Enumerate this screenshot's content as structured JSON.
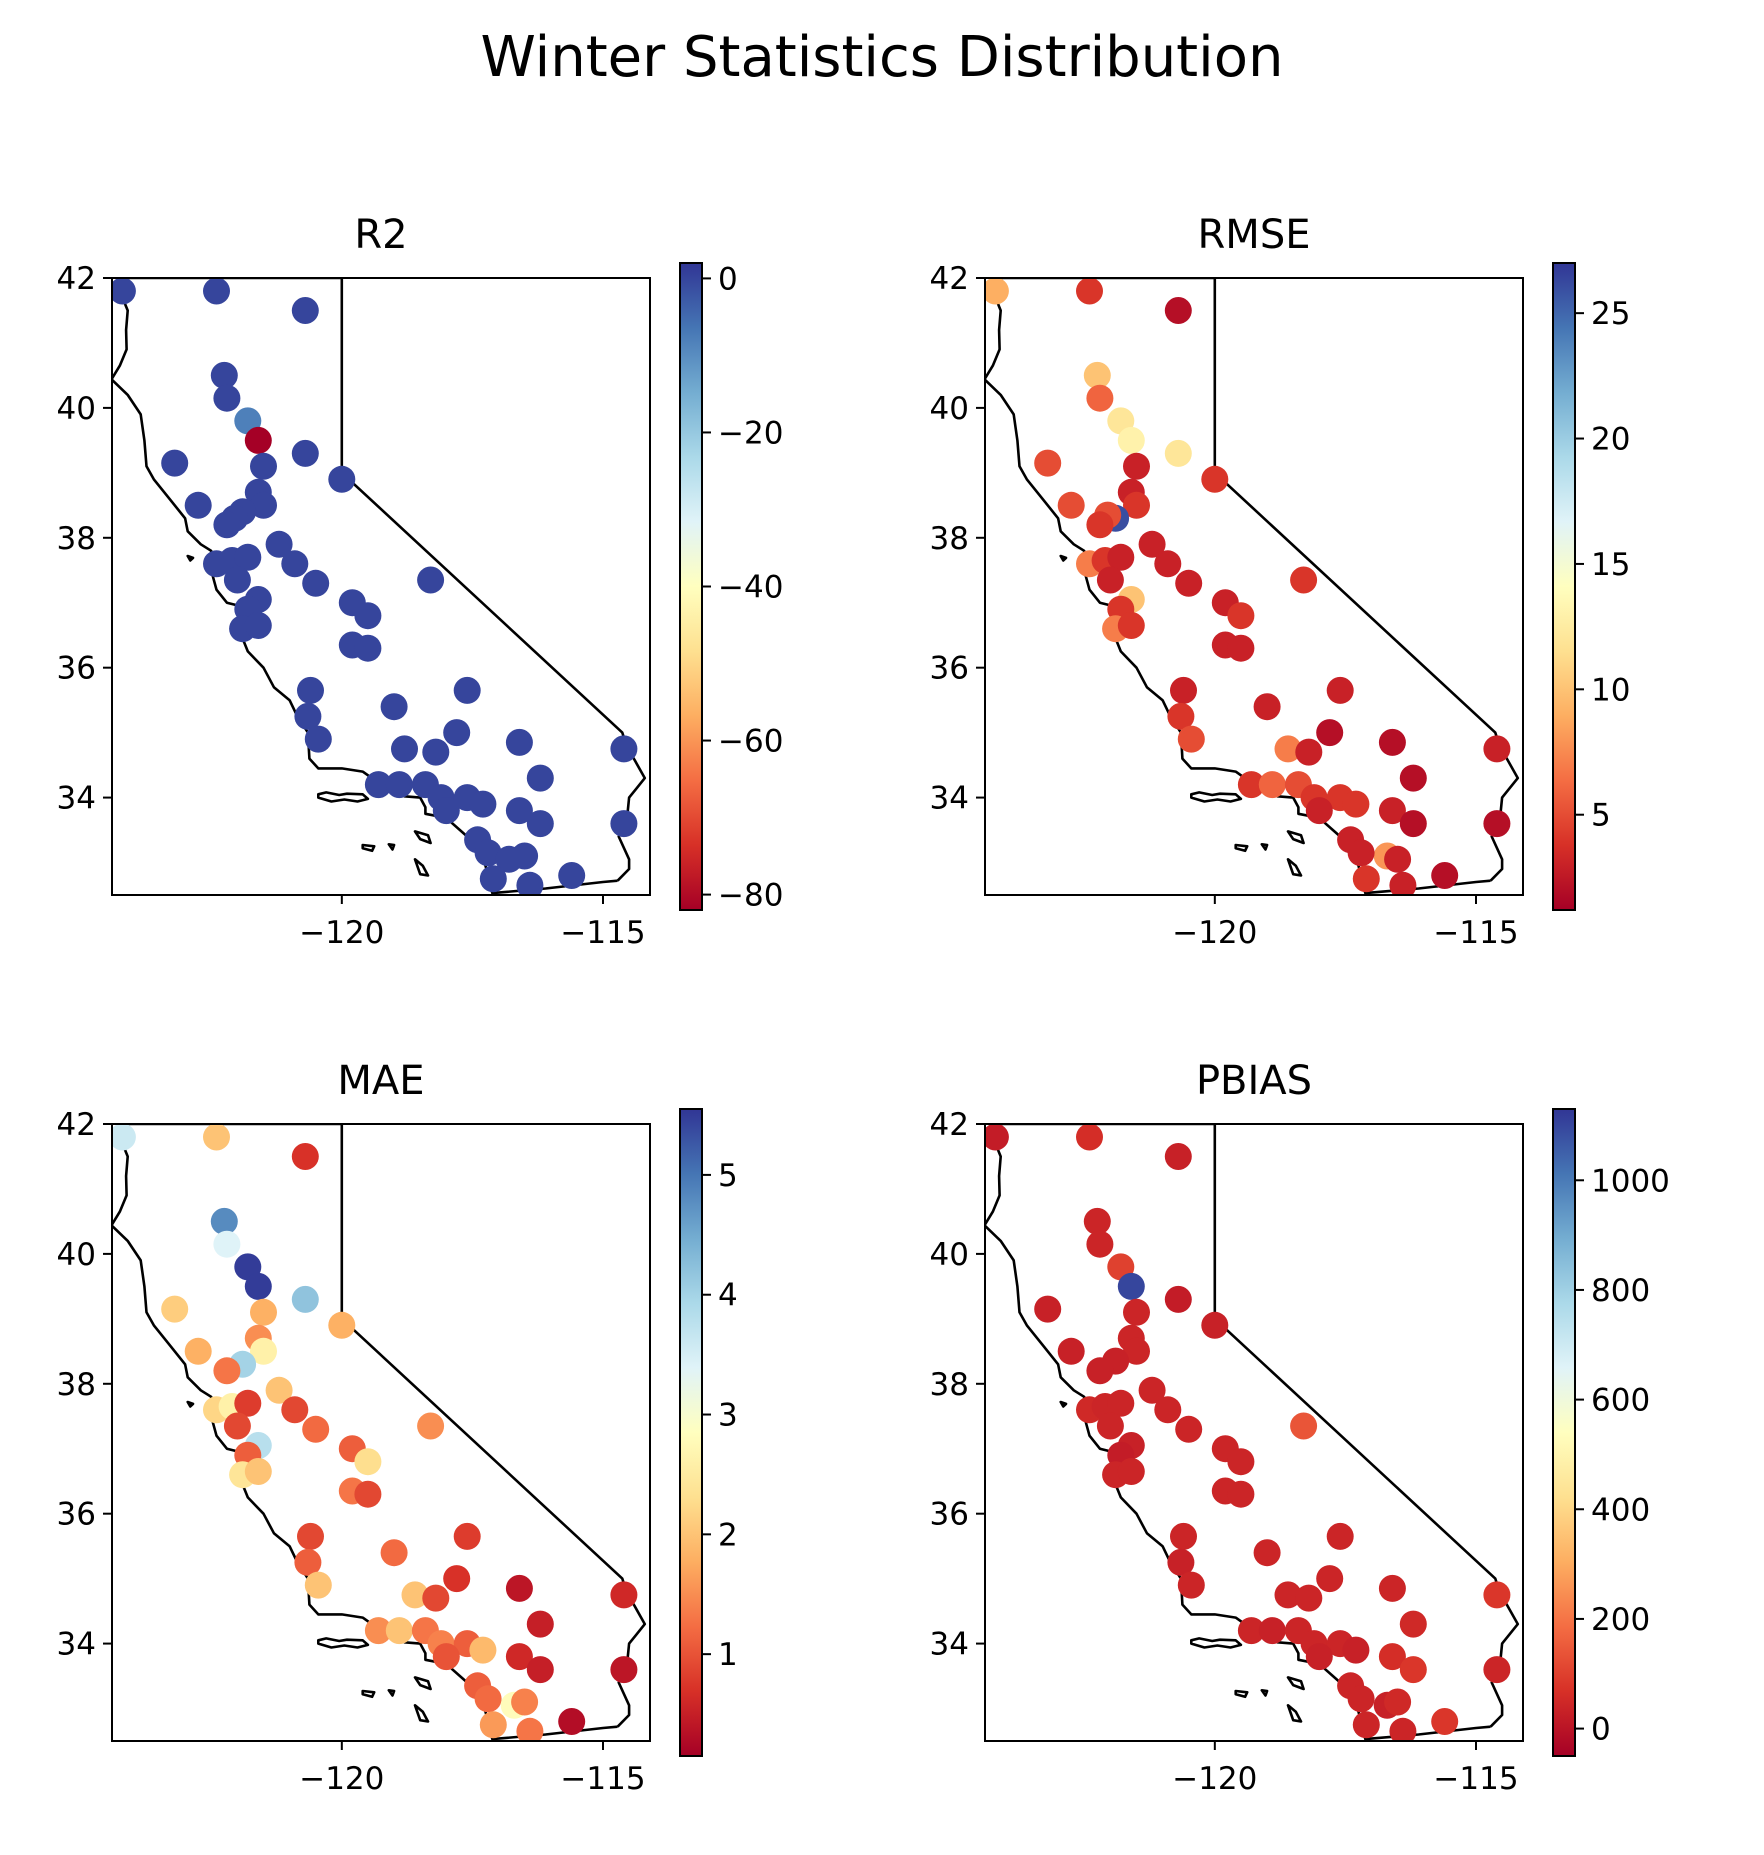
{
  "figure": {
    "title": "Winter Statistics Distribution",
    "xlim": [
      -124.4,
      -114.1
    ],
    "ylim": [
      32.5,
      42.0
    ],
    "xticks": [
      -120,
      -115
    ],
    "yticks": [
      34,
      36,
      38,
      40,
      42
    ],
    "cmap": [
      "#a50026",
      "#d73027",
      "#f46d43",
      "#fdae61",
      "#fee090",
      "#ffffbf",
      "#e0f3f8",
      "#abd9e9",
      "#74add1",
      "#4575b4",
      "#313695"
    ]
  },
  "chart_data": [
    {
      "type": "scatter",
      "title": "R2",
      "colorbar": {
        "range": [
          -82,
          2
        ],
        "ticks": [
          0,
          -20,
          -40,
          -60,
          -80
        ]
      },
      "points": [
        [
          -124.2,
          41.8,
          0
        ],
        [
          -122.4,
          41.8,
          0
        ],
        [
          -120.7,
          41.5,
          0
        ],
        [
          -122.25,
          40.5,
          0
        ],
        [
          -122.2,
          40.15,
          0
        ],
        [
          -121.8,
          39.8,
          -8
        ],
        [
          -121.6,
          39.5,
          -82
        ],
        [
          -123.2,
          39.15,
          0
        ],
        [
          -121.5,
          39.1,
          0
        ],
        [
          -120.7,
          39.3,
          0
        ],
        [
          -120.0,
          38.9,
          0
        ],
        [
          -121.6,
          38.7,
          0
        ],
        [
          -121.5,
          38.5,
          0
        ],
        [
          -122.75,
          38.5,
          0
        ],
        [
          -121.9,
          38.4,
          0
        ],
        [
          -122.05,
          38.3,
          0
        ],
        [
          -122.2,
          38.2,
          0
        ],
        [
          -121.2,
          37.9,
          0
        ],
        [
          -122.4,
          37.6,
          0
        ],
        [
          -122.1,
          37.65,
          0
        ],
        [
          -121.8,
          37.7,
          0
        ],
        [
          -120.9,
          37.6,
          0
        ],
        [
          -122.0,
          37.35,
          0
        ],
        [
          -120.5,
          37.3,
          0
        ],
        [
          -118.3,
          37.35,
          0
        ],
        [
          -121.6,
          37.05,
          0
        ],
        [
          -121.8,
          36.9,
          0
        ],
        [
          -119.8,
          37.0,
          0
        ],
        [
          -119.5,
          36.8,
          0
        ],
        [
          -121.9,
          36.6,
          0
        ],
        [
          -121.6,
          36.65,
          0
        ],
        [
          -119.8,
          36.35,
          0
        ],
        [
          -119.5,
          36.3,
          0
        ],
        [
          -120.6,
          35.65,
          0
        ],
        [
          -117.6,
          35.65,
          0
        ],
        [
          -119.0,
          35.4,
          0
        ],
        [
          -120.65,
          35.25,
          0
        ],
        [
          -120.45,
          34.9,
          0
        ],
        [
          -118.8,
          34.75,
          0
        ],
        [
          -118.2,
          34.7,
          0
        ],
        [
          -117.8,
          35.0,
          0
        ],
        [
          -116.6,
          34.85,
          0
        ],
        [
          -114.6,
          34.75,
          0
        ],
        [
          -119.3,
          34.2,
          0
        ],
        [
          -118.9,
          34.2,
          0
        ],
        [
          -118.4,
          34.2,
          0
        ],
        [
          -118.1,
          34.0,
          0
        ],
        [
          -117.6,
          34.0,
          0
        ],
        [
          -117.3,
          33.9,
          0
        ],
        [
          -118.0,
          33.8,
          0
        ],
        [
          -116.2,
          34.3,
          0
        ],
        [
          -116.6,
          33.8,
          0
        ],
        [
          -116.2,
          33.6,
          0
        ],
        [
          -114.6,
          33.6,
          0
        ],
        [
          -117.4,
          33.35,
          0
        ],
        [
          -117.2,
          33.15,
          0
        ],
        [
          -116.8,
          33.05,
          0
        ],
        [
          -116.5,
          33.1,
          0
        ],
        [
          -117.1,
          32.75,
          0
        ],
        [
          -116.4,
          32.65,
          0
        ],
        [
          -115.6,
          32.8,
          0
        ]
      ]
    },
    {
      "type": "scatter",
      "title": "RMSE",
      "colorbar": {
        "range": [
          1.2,
          27
        ],
        "ticks": [
          5,
          10,
          15,
          20,
          25
        ]
      },
      "points": [
        [
          -124.2,
          41.8,
          9
        ],
        [
          -122.4,
          41.8,
          4
        ],
        [
          -120.7,
          41.5,
          2
        ],
        [
          -122.25,
          40.5,
          10
        ],
        [
          -122.2,
          40.15,
          6
        ],
        [
          -121.8,
          39.8,
          12
        ],
        [
          -121.6,
          39.5,
          13
        ],
        [
          -123.2,
          39.15,
          5
        ],
        [
          -121.5,
          39.1,
          3
        ],
        [
          -120.7,
          39.3,
          12
        ],
        [
          -120.0,
          38.9,
          4
        ],
        [
          -121.6,
          38.7,
          3
        ],
        [
          -121.5,
          38.5,
          4
        ],
        [
          -122.75,
          38.5,
          5
        ],
        [
          -121.9,
          38.3,
          26
        ],
        [
          -122.05,
          38.35,
          5
        ],
        [
          -122.2,
          38.2,
          4
        ],
        [
          -121.2,
          37.9,
          3
        ],
        [
          -122.4,
          37.6,
          7
        ],
        [
          -122.1,
          37.65,
          4
        ],
        [
          -121.8,
          37.7,
          3
        ],
        [
          -120.9,
          37.6,
          3
        ],
        [
          -122.0,
          37.35,
          3
        ],
        [
          -120.5,
          37.3,
          3
        ],
        [
          -118.3,
          37.35,
          4
        ],
        [
          -121.6,
          37.05,
          10
        ],
        [
          -121.8,
          36.9,
          4
        ],
        [
          -119.8,
          37.0,
          3
        ],
        [
          -119.5,
          36.8,
          4
        ],
        [
          -121.9,
          36.6,
          7
        ],
        [
          -121.6,
          36.65,
          4
        ],
        [
          -119.8,
          36.35,
          3
        ],
        [
          -119.5,
          36.3,
          3
        ],
        [
          -120.6,
          35.65,
          3
        ],
        [
          -117.6,
          35.65,
          3
        ],
        [
          -119.0,
          35.4,
          3
        ],
        [
          -120.65,
          35.25,
          4
        ],
        [
          -120.45,
          34.9,
          5
        ],
        [
          -118.6,
          34.75,
          7
        ],
        [
          -118.2,
          34.7,
          3
        ],
        [
          -117.8,
          35.0,
          2
        ],
        [
          -116.6,
          34.85,
          2
        ],
        [
          -114.6,
          34.75,
          3
        ],
        [
          -119.3,
          34.2,
          4
        ],
        [
          -118.9,
          34.2,
          6
        ],
        [
          -118.4,
          34.2,
          5
        ],
        [
          -118.1,
          34.0,
          4
        ],
        [
          -117.6,
          34.0,
          4
        ],
        [
          -117.3,
          33.9,
          4
        ],
        [
          -118.0,
          33.8,
          3
        ],
        [
          -116.2,
          34.3,
          2
        ],
        [
          -116.6,
          33.8,
          3
        ],
        [
          -116.2,
          33.6,
          2
        ],
        [
          -114.6,
          33.6,
          2
        ],
        [
          -117.4,
          33.35,
          3
        ],
        [
          -116.7,
          33.1,
          8
        ],
        [
          -117.2,
          33.15,
          3
        ],
        [
          -116.5,
          33.05,
          3
        ],
        [
          -117.1,
          32.75,
          4
        ],
        [
          -116.4,
          32.65,
          3
        ],
        [
          -115.6,
          32.8,
          2
        ]
      ]
    },
    {
      "type": "scatter",
      "title": "MAE",
      "colorbar": {
        "range": [
          0.15,
          5.55
        ],
        "ticks": [
          1,
          2,
          3,
          4,
          5
        ]
      },
      "points": [
        [
          -124.2,
          41.8,
          3.6
        ],
        [
          -122.4,
          41.8,
          2.0
        ],
        [
          -120.7,
          41.5,
          0.7
        ],
        [
          -122.25,
          40.5,
          4.8
        ],
        [
          -122.2,
          40.15,
          3.4
        ],
        [
          -121.8,
          39.8,
          5.5
        ],
        [
          -121.6,
          39.5,
          5.5
        ],
        [
          -123.2,
          39.15,
          2.1
        ],
        [
          -121.5,
          39.1,
          1.8
        ],
        [
          -120.7,
          39.3,
          4.2
        ],
        [
          -120.0,
          38.9,
          1.8
        ],
        [
          -121.6,
          38.7,
          1.5
        ],
        [
          -121.5,
          38.5,
          2.6
        ],
        [
          -122.75,
          38.5,
          1.8
        ],
        [
          -121.9,
          38.3,
          4.0
        ],
        [
          -122.2,
          38.2,
          1.3
        ],
        [
          -121.2,
          37.9,
          2.0
        ],
        [
          -122.4,
          37.6,
          2.2
        ],
        [
          -122.1,
          37.65,
          2.6
        ],
        [
          -121.8,
          37.7,
          0.8
        ],
        [
          -120.9,
          37.6,
          0.9
        ],
        [
          -122.0,
          37.35,
          0.9
        ],
        [
          -120.5,
          37.3,
          1.2
        ],
        [
          -118.3,
          37.35,
          1.5
        ],
        [
          -121.6,
          37.05,
          3.8
        ],
        [
          -121.8,
          36.9,
          1.1
        ],
        [
          -119.8,
          37.0,
          1.1
        ],
        [
          -119.5,
          36.8,
          2.3
        ],
        [
          -121.9,
          36.6,
          2.4
        ],
        [
          -121.6,
          36.65,
          2.0
        ],
        [
          -119.8,
          36.35,
          1.3
        ],
        [
          -119.5,
          36.3,
          0.9
        ],
        [
          -120.6,
          35.65,
          0.9
        ],
        [
          -117.6,
          35.65,
          0.8
        ],
        [
          -119.0,
          35.4,
          1.2
        ],
        [
          -120.65,
          35.25,
          1.1
        ],
        [
          -120.45,
          34.9,
          2.0
        ],
        [
          -118.6,
          34.75,
          2.0
        ],
        [
          -118.2,
          34.7,
          0.9
        ],
        [
          -117.8,
          35.0,
          0.7
        ],
        [
          -116.6,
          34.85,
          0.4
        ],
        [
          -114.6,
          34.75,
          0.6
        ],
        [
          -119.3,
          34.2,
          1.5
        ],
        [
          -118.9,
          34.2,
          2.0
        ],
        [
          -118.4,
          34.2,
          1.3
        ],
        [
          -118.1,
          34.0,
          1.4
        ],
        [
          -117.6,
          34.0,
          1.1
        ],
        [
          -117.3,
          33.9,
          1.9
        ],
        [
          -118.0,
          33.8,
          1.0
        ],
        [
          -116.2,
          34.3,
          0.5
        ],
        [
          -116.6,
          33.8,
          0.6
        ],
        [
          -116.2,
          33.6,
          0.5
        ],
        [
          -114.6,
          33.6,
          0.4
        ],
        [
          -117.4,
          33.35,
          1.1
        ],
        [
          -117.2,
          33.15,
          1.2
        ],
        [
          -116.7,
          33.05,
          2.8
        ],
        [
          -116.5,
          33.1,
          1.4
        ],
        [
          -117.1,
          32.75,
          1.6
        ],
        [
          -116.4,
          32.65,
          1.3
        ],
        [
          -115.6,
          32.8,
          0.3
        ]
      ]
    },
    {
      "type": "scatter",
      "title": "PBIAS",
      "colorbar": {
        "range": [
          -50,
          1130
        ],
        "ticks": [
          0,
          200,
          400,
          600,
          800,
          1000
        ]
      },
      "points": [
        [
          -124.2,
          41.8,
          20
        ],
        [
          -122.4,
          41.8,
          60
        ],
        [
          -120.7,
          41.5,
          30
        ],
        [
          -122.25,
          40.5,
          40
        ],
        [
          -122.2,
          40.15,
          40
        ],
        [
          -121.8,
          39.8,
          100
        ],
        [
          -121.6,
          39.5,
          1100
        ],
        [
          -123.2,
          39.15,
          30
        ],
        [
          -121.5,
          39.1,
          40
        ],
        [
          -120.7,
          39.3,
          20
        ],
        [
          -120.0,
          38.9,
          30
        ],
        [
          -121.6,
          38.7,
          40
        ],
        [
          -121.5,
          38.5,
          40
        ],
        [
          -122.75,
          38.5,
          30
        ],
        [
          -121.9,
          38.35,
          30
        ],
        [
          -122.2,
          38.2,
          30
        ],
        [
          -121.2,
          37.9,
          40
        ],
        [
          -122.4,
          37.6,
          50
        ],
        [
          -122.1,
          37.65,
          40
        ],
        [
          -121.8,
          37.7,
          40
        ],
        [
          -120.9,
          37.6,
          40
        ],
        [
          -122.0,
          37.35,
          40
        ],
        [
          -120.5,
          37.3,
          40
        ],
        [
          -118.3,
          37.35,
          140
        ],
        [
          -121.6,
          37.05,
          30
        ],
        [
          -121.8,
          36.9,
          20
        ],
        [
          -119.8,
          37.0,
          40
        ],
        [
          -119.5,
          36.8,
          40
        ],
        [
          -121.9,
          36.6,
          40
        ],
        [
          -121.6,
          36.65,
          40
        ],
        [
          -119.8,
          36.35,
          40
        ],
        [
          -119.5,
          36.3,
          40
        ],
        [
          -120.6,
          35.65,
          40
        ],
        [
          -117.6,
          35.65,
          40
        ],
        [
          -119.0,
          35.4,
          40
        ],
        [
          -120.65,
          35.25,
          30
        ],
        [
          -120.45,
          34.9,
          40
        ],
        [
          -118.6,
          34.75,
          40
        ],
        [
          -118.2,
          34.7,
          40
        ],
        [
          -117.8,
          35.0,
          40
        ],
        [
          -116.6,
          34.85,
          40
        ],
        [
          -114.6,
          34.75,
          80
        ],
        [
          -119.3,
          34.2,
          40
        ],
        [
          -118.9,
          34.2,
          30
        ],
        [
          -118.4,
          34.2,
          40
        ],
        [
          -118.1,
          34.0,
          40
        ],
        [
          -117.6,
          34.0,
          40
        ],
        [
          -117.3,
          33.9,
          30
        ],
        [
          -118.0,
          33.8,
          30
        ],
        [
          -116.2,
          34.3,
          50
        ],
        [
          -116.6,
          33.8,
          60
        ],
        [
          -116.2,
          33.6,
          80
        ],
        [
          -114.6,
          33.6,
          40
        ],
        [
          -117.4,
          33.35,
          40
        ],
        [
          -117.2,
          33.15,
          40
        ],
        [
          -116.7,
          33.05,
          30
        ],
        [
          -116.5,
          33.1,
          50
        ],
        [
          -117.1,
          32.75,
          40
        ],
        [
          -116.4,
          32.65,
          40
        ],
        [
          -115.6,
          32.8,
          80
        ]
      ]
    }
  ]
}
